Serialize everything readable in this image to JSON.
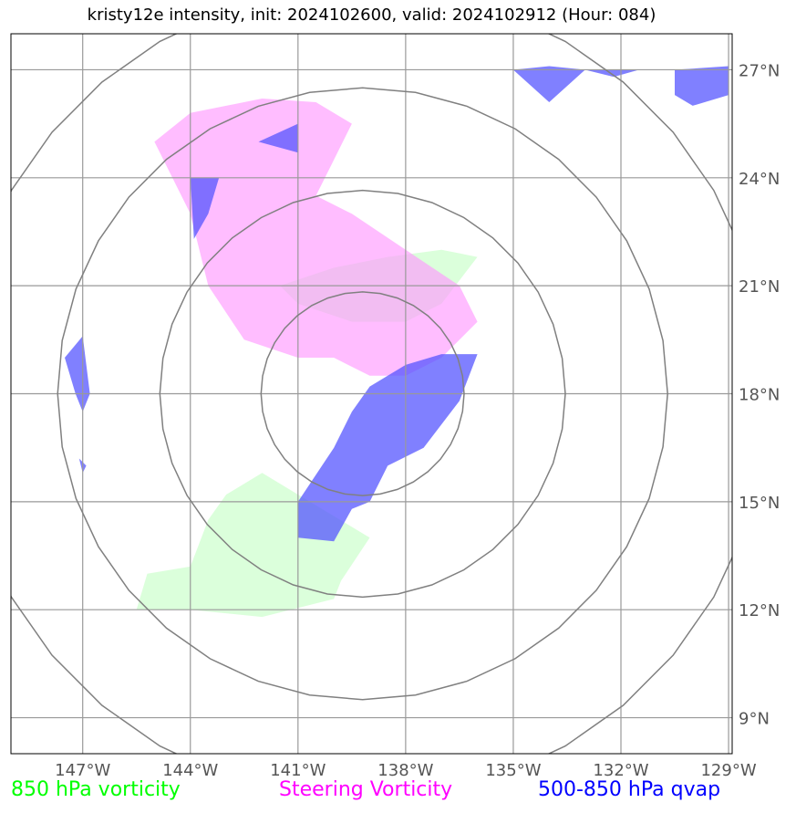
{
  "title": "kristy12e intensity, init: 2024102600, valid: 2024102912 (Hour: 084)",
  "map": {
    "lon_range": [
      -149,
      -128.9
    ],
    "lat_range": [
      8,
      28
    ],
    "x_ticks": [
      {
        "lon": -147,
        "label": "147°W"
      },
      {
        "lon": -144,
        "label": "144°W"
      },
      {
        "lon": -141,
        "label": "141°W"
      },
      {
        "lon": -138,
        "label": "138°W"
      },
      {
        "lon": -135,
        "label": "135°W"
      },
      {
        "lon": -132,
        "label": "132°W"
      },
      {
        "lon": -129,
        "label": "129°W"
      }
    ],
    "y_ticks": [
      {
        "lat": 27,
        "label": "27°N"
      },
      {
        "lat": 24,
        "label": "24°N"
      },
      {
        "lat": 21,
        "label": "21°N"
      },
      {
        "lat": 18,
        "label": "18°N"
      },
      {
        "lat": 15,
        "label": "15°N"
      },
      {
        "lat": 12,
        "label": "12°N"
      },
      {
        "lat": 9,
        "label": "9°N"
      }
    ],
    "grid": true,
    "range_rings": {
      "center_lon": -139.2,
      "center_lat": 18.0,
      "radii_deg": [
        2.83,
        5.65,
        8.5,
        11.3
      ]
    },
    "layers": [
      {
        "name": "850 hPa vorticity",
        "color": "#ccffcc",
        "opacity": 0.7,
        "polygons": [
          [
            [
              -145.5,
              12
            ],
            [
              -145.2,
              13
            ],
            [
              -144.0,
              13.2
            ],
            [
              -143.5,
              14.5
            ],
            [
              -143.0,
              15.2
            ],
            [
              -142.0,
              15.8
            ],
            [
              -141.0,
              15.2
            ],
            [
              -140.0,
              14.6
            ],
            [
              -139.0,
              14.0
            ],
            [
              -139.8,
              12.8
            ],
            [
              -140.0,
              12.3
            ],
            [
              -142.0,
              11.8
            ],
            [
              -144.0,
              12.0
            ]
          ],
          [
            [
              -141.5,
              21.0
            ],
            [
              -140.0,
              21.5
            ],
            [
              -138.5,
              21.8
            ],
            [
              -137.0,
              22.0
            ],
            [
              -136.0,
              21.8
            ],
            [
              -137.0,
              20.5
            ],
            [
              -138.0,
              20.0
            ],
            [
              -139.5,
              20.0
            ],
            [
              -141.0,
              20.5
            ]
          ]
        ]
      },
      {
        "name": "Steering Vorticity",
        "color": "#ff99ff",
        "opacity": 0.65,
        "polygons": [
          [
            [
              -143.0,
              26.0
            ],
            [
              -142.0,
              26.2
            ],
            [
              -140.5,
              26.1
            ],
            [
              -139.5,
              25.5
            ],
            [
              -140.0,
              24.5
            ],
            [
              -140.5,
              23.5
            ],
            [
              -139.5,
              23.0
            ],
            [
              -138.0,
              22.0
            ],
            [
              -136.5,
              21.0
            ],
            [
              -136.0,
              20.0
            ],
            [
              -137.0,
              19.0
            ],
            [
              -138.0,
              18.5
            ],
            [
              -139.0,
              18.5
            ],
            [
              -140.0,
              19.0
            ],
            [
              -141.0,
              19.0
            ],
            [
              -142.5,
              19.5
            ],
            [
              -143.5,
              21.0
            ],
            [
              -144.0,
              23.0
            ],
            [
              -145.0,
              25.0
            ],
            [
              -144.0,
              25.8
            ]
          ]
        ]
      },
      {
        "name": "500-850 hPa qvap",
        "color": "#5555ff",
        "opacity": 0.75,
        "polygons": [
          [
            [
              -141.0,
              15.0
            ],
            [
              -140.0,
              16.5
            ],
            [
              -139.5,
              17.5
            ],
            [
              -139.0,
              18.2
            ],
            [
              -138.0,
              18.8
            ],
            [
              -137.0,
              19.1
            ],
            [
              -136.0,
              19.1
            ],
            [
              -136.5,
              17.8
            ],
            [
              -137.5,
              16.5
            ],
            [
              -138.5,
              16.0
            ],
            [
              -139.0,
              15.0
            ],
            [
              -139.5,
              14.8
            ],
            [
              -140.0,
              13.9
            ],
            [
              -141.0,
              14.0
            ]
          ],
          [
            [
              -144.0,
              24.0
            ],
            [
              -143.2,
              24.0
            ],
            [
              -143.5,
              23.0
            ],
            [
              -143.9,
              22.3
            ]
          ],
          [
            [
              -142.1,
              25.0
            ],
            [
              -141.0,
              25.5
            ],
            [
              -141.0,
              24.7
            ]
          ],
          [
            [
              -147.5,
              19.0
            ],
            [
              -147.0,
              19.6
            ],
            [
              -146.8,
              18.0
            ],
            [
              -147.0,
              17.5
            ],
            [
              -147.2,
              18.0
            ]
          ],
          [
            [
              -147.1,
              16.2
            ],
            [
              -146.9,
              16.0
            ],
            [
              -147.0,
              15.8
            ]
          ],
          [
            [
              -135.0,
              27.0
            ],
            [
              -134.0,
              27.1
            ],
            [
              -133.0,
              27.0
            ],
            [
              -134.0,
              26.1
            ]
          ],
          [
            [
              -133.0,
              27.0
            ],
            [
              -131.5,
              27.0
            ],
            [
              -132.2,
              26.8
            ]
          ],
          [
            [
              -130.5,
              27.0
            ],
            [
              -129.0,
              27.1
            ],
            [
              -129.0,
              26.3
            ],
            [
              -130.0,
              26.0
            ],
            [
              -130.5,
              26.3
            ]
          ]
        ]
      }
    ]
  },
  "legend": [
    {
      "label": "850 hPa vorticity",
      "color": "#00ff00"
    },
    {
      "label": "Steering Vorticity",
      "color": "#ff00ff"
    },
    {
      "label": "500-850 hPa qvap",
      "color": "#0000ff"
    }
  ]
}
